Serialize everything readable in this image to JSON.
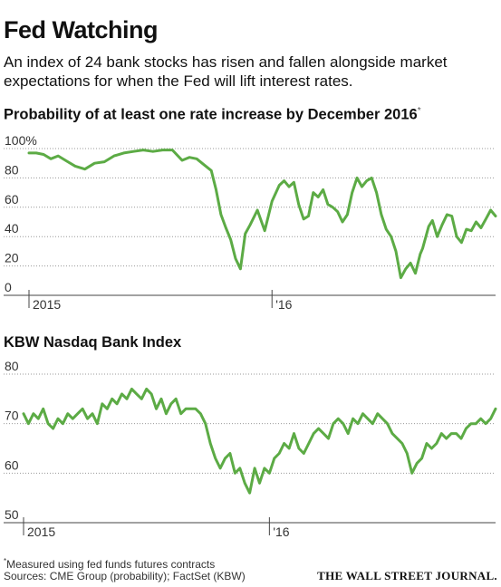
{
  "headline": "Fed Watching",
  "subtitle": "An index of 24 bank stocks has risen and fallen alongside market expectations for when the Fed will lift interest rates.",
  "footnote": "Measured using fed funds futures contracts",
  "footnote_marker": "*",
  "sources": "Sources: CME Group (probability); FactSet (KBW)",
  "credit": "THE WALL STREET JOURNAL.",
  "series_color": "#5cab45",
  "chart_data": [
    {
      "type": "line",
      "title": "Probability of at least one rate increase by December 2016",
      "title_marker": "*",
      "xlabel": "",
      "ylabel": "",
      "ylim": [
        0,
        100
      ],
      "y_ticks": [
        0,
        20,
        40,
        60,
        80,
        100
      ],
      "y_tick_labels": [
        "0",
        "20",
        "40",
        "60",
        "80",
        "100%"
      ],
      "x_ticks": [
        "2015",
        "'16"
      ],
      "grid": true,
      "legend": "none",
      "x_range": [
        2015.0,
        2016.92
      ],
      "series": [
        {
          "x": [
            2015.0,
            2015.03,
            2015.06,
            2015.09,
            2015.12,
            2015.16,
            2015.19,
            2015.23,
            2015.27,
            2015.31,
            2015.35,
            2015.39,
            2015.43,
            2015.47,
            2015.51,
            2015.55,
            2015.59,
            2015.63,
            2015.66,
            2015.69,
            2015.72,
            2015.75,
            2015.77,
            2015.79,
            2015.81,
            2015.83,
            2015.85,
            2015.87,
            2015.89,
            2015.91,
            2015.94,
            2015.97,
            2016.0,
            2016.03,
            2016.05,
            2016.07,
            2016.09,
            2016.11,
            2016.13,
            2016.15,
            2016.17,
            2016.19,
            2016.21,
            2016.23,
            2016.25,
            2016.27,
            2016.29,
            2016.31,
            2016.33,
            2016.35,
            2016.37,
            2016.39,
            2016.41,
            2016.43,
            2016.45,
            2016.47,
            2016.49,
            2016.51,
            2016.53,
            2016.55,
            2016.57,
            2016.59,
            2016.61,
            2016.62,
            2016.63,
            2016.645,
            2016.66,
            2016.68,
            2016.7,
            2016.72,
            2016.74,
            2016.76,
            2016.78,
            2016.8,
            2016.82,
            2016.84,
            2016.86,
            2016.88,
            2016.9,
            2016.92
          ],
          "values": [
            97,
            97,
            96,
            93,
            95,
            91,
            88,
            86,
            90,
            91,
            95,
            97,
            98,
            99,
            98,
            99,
            99,
            92,
            94,
            93,
            89,
            85,
            72,
            55,
            46,
            38,
            25,
            18,
            42,
            48,
            58,
            44,
            64,
            75,
            78,
            74,
            77,
            62,
            52,
            54,
            70,
            67,
            72,
            62,
            60,
            57,
            50,
            55,
            70,
            80,
            74,
            78,
            80,
            70,
            55,
            45,
            40,
            30,
            12,
            18,
            22,
            15,
            28,
            32,
            38,
            47,
            51,
            40,
            48,
            55,
            54,
            40,
            36,
            45,
            44,
            50,
            46,
            52,
            58,
            54
          ]
        }
      ]
    },
    {
      "type": "line",
      "title": "KBW Nasdaq Bank Index",
      "xlabel": "",
      "ylabel": "",
      "ylim": [
        50,
        80
      ],
      "y_ticks": [
        50,
        60,
        70,
        80
      ],
      "y_tick_labels": [
        "50",
        "60",
        "70",
        "80"
      ],
      "x_ticks": [
        "2015",
        "'16"
      ],
      "grid": true,
      "legend": "none",
      "x_range": [
        2015.0,
        2016.92
      ],
      "series": [
        {
          "x": [
            2015.0,
            2015.02,
            2015.04,
            2015.06,
            2015.08,
            2015.1,
            2015.12,
            2015.14,
            2015.16,
            2015.18,
            2015.2,
            2015.22,
            2015.24,
            2015.26,
            2015.28,
            2015.3,
            2015.32,
            2015.34,
            2015.36,
            2015.38,
            2015.4,
            2015.42,
            2015.44,
            2015.46,
            2015.48,
            2015.5,
            2015.52,
            2015.54,
            2015.56,
            2015.58,
            2015.6,
            2015.62,
            2015.64,
            2015.66,
            2015.68,
            2015.7,
            2015.72,
            2015.74,
            2015.76,
            2015.78,
            2015.8,
            2015.82,
            2015.84,
            2015.86,
            2015.88,
            2015.9,
            2015.92,
            2015.94,
            2015.96,
            2015.98,
            2016.0,
            2016.02,
            2016.04,
            2016.06,
            2016.08,
            2016.1,
            2016.12,
            2016.14,
            2016.16,
            2016.18,
            2016.2,
            2016.22,
            2016.24,
            2016.26,
            2016.28,
            2016.3,
            2016.32,
            2016.34,
            2016.36,
            2016.38,
            2016.4,
            2016.42,
            2016.44,
            2016.46,
            2016.48,
            2016.5,
            2016.52,
            2016.54,
            2016.56,
            2016.58,
            2016.6,
            2016.62,
            2016.64,
            2016.66,
            2016.68,
            2016.7,
            2016.72,
            2016.74,
            2016.76,
            2016.78,
            2016.8,
            2016.82,
            2016.84,
            2016.86,
            2016.88,
            2016.9,
            2016.92
          ],
          "values": [
            72,
            70,
            72,
            71,
            73,
            70,
            69,
            71,
            70,
            72,
            71,
            72,
            73,
            71,
            72,
            70,
            74,
            73,
            75,
            74,
            76,
            75,
            77,
            76,
            75,
            77,
            76,
            73,
            75,
            72,
            74,
            75,
            72,
            73,
            73,
            73,
            72,
            70,
            66,
            63,
            61,
            63,
            64,
            60,
            61,
            58,
            56,
            61,
            58,
            61,
            60,
            63,
            64,
            66,
            65,
            68,
            65,
            64,
            66,
            68,
            69,
            68,
            67,
            70,
            71,
            70,
            68,
            71,
            70,
            72,
            71,
            70,
            72,
            71,
            70,
            68,
            67,
            66,
            64,
            60,
            62,
            63,
            66,
            65,
            66,
            68,
            67,
            68,
            68,
            67,
            69,
            70,
            70,
            71,
            70,
            71,
            73
          ]
        }
      ]
    }
  ]
}
